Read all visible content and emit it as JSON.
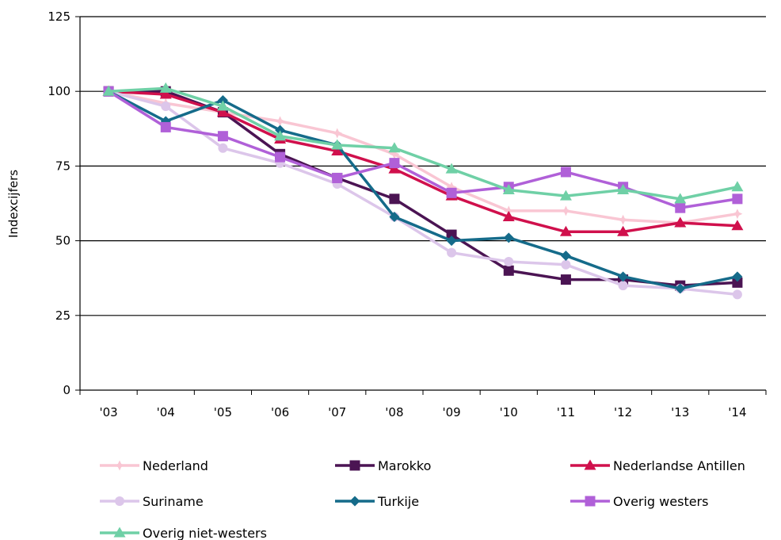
{
  "chart_data": {
    "type": "line",
    "title": "",
    "xlabel": "",
    "ylabel": "Indexcijfers",
    "categories": [
      "'03",
      "'04",
      "'05",
      "'06",
      "'07",
      "'08",
      "'09",
      "'10",
      "'11",
      "'12",
      "'13",
      "'14"
    ],
    "ylim": [
      0,
      125
    ],
    "yticks": [
      0,
      25,
      50,
      75,
      100,
      125
    ],
    "grid": "horizontal",
    "legend": "bottom",
    "series": [
      {
        "name": "Nederland",
        "color": "#f9c6d3",
        "marker": "star",
        "values": [
          100,
          96,
          93,
          90,
          86,
          79,
          68,
          60,
          60,
          57,
          56,
          59
        ]
      },
      {
        "name": "Marokko",
        "color": "#4b1453",
        "marker": "square",
        "values": [
          100,
          100,
          93,
          79,
          71,
          64,
          52,
          40,
          37,
          37,
          35,
          36
        ]
      },
      {
        "name": "Nederlandse Antillen",
        "color": "#d0104c",
        "marker": "triangle",
        "values": [
          100,
          99,
          93,
          84,
          80,
          74,
          65,
          58,
          53,
          53,
          56,
          55
        ]
      },
      {
        "name": "Suriname",
        "color": "#dcc6ea",
        "marker": "circle",
        "values": [
          100,
          95,
          81,
          76,
          69,
          58,
          46,
          43,
          42,
          35,
          34,
          32
        ]
      },
      {
        "name": "Turkije",
        "color": "#156b8a",
        "marker": "diamond",
        "values": [
          100,
          90,
          97,
          87,
          82,
          58,
          50,
          51,
          45,
          38,
          34,
          38
        ]
      },
      {
        "name": "Overig westers",
        "color": "#b060d8",
        "marker": "square",
        "values": [
          100,
          88,
          85,
          78,
          71,
          76,
          66,
          68,
          73,
          68,
          61,
          64
        ]
      },
      {
        "name": "Overig niet-westers",
        "color": "#6fd0a6",
        "marker": "triangle",
        "values": [
          100,
          101,
          95,
          85,
          82,
          81,
          74,
          67,
          65,
          67,
          64,
          68
        ]
      }
    ]
  }
}
